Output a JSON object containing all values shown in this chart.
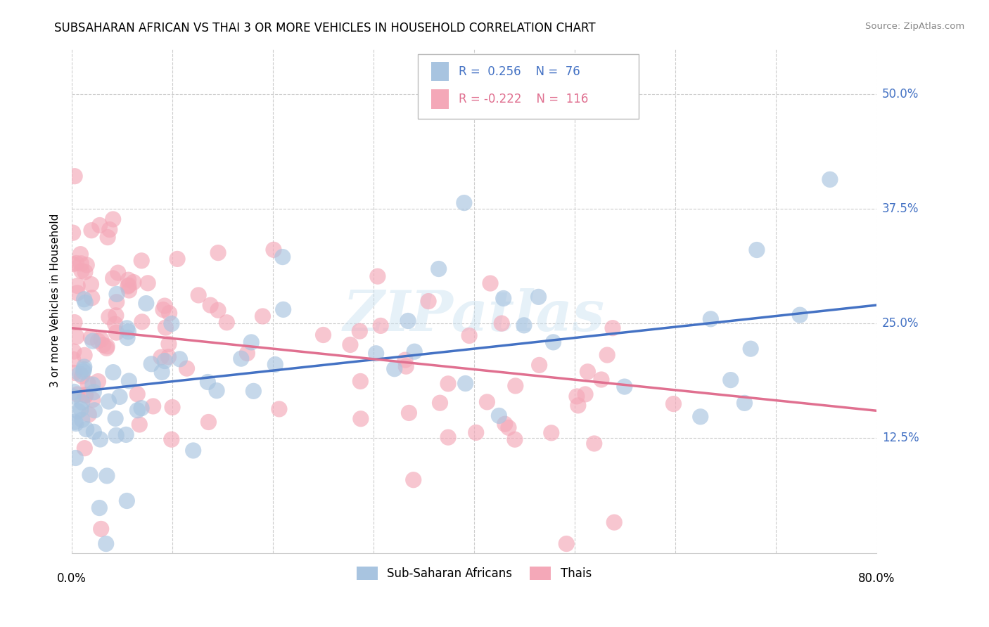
{
  "title": "SUBSAHARAN AFRICAN VS THAI 3 OR MORE VEHICLES IN HOUSEHOLD CORRELATION CHART",
  "source": "Source: ZipAtlas.com",
  "ylabel": "3 or more Vehicles in Household",
  "ytick_labels": [
    "12.5%",
    "25.0%",
    "37.5%",
    "50.0%"
  ],
  "ytick_values": [
    0.125,
    0.25,
    0.375,
    0.5
  ],
  "xlim": [
    0.0,
    0.8
  ],
  "ylim": [
    0.0,
    0.55
  ],
  "blue_R": 0.256,
  "blue_N": 76,
  "pink_R": -0.222,
  "pink_N": 116,
  "blue_color": "#a8c4e0",
  "pink_color": "#f4a8b8",
  "blue_line_color": "#4472c4",
  "pink_line_color": "#e07090",
  "legend_label_blue": "Sub-Saharan Africans",
  "legend_label_pink": "Thais",
  "watermark": "ZIPatlas",
  "blue_line_x0": 0.0,
  "blue_line_x1": 0.8,
  "blue_line_y0": 0.175,
  "blue_line_y1": 0.27,
  "pink_line_x0": 0.0,
  "pink_line_x1": 0.8,
  "pink_line_y0": 0.245,
  "pink_line_y1": 0.155
}
